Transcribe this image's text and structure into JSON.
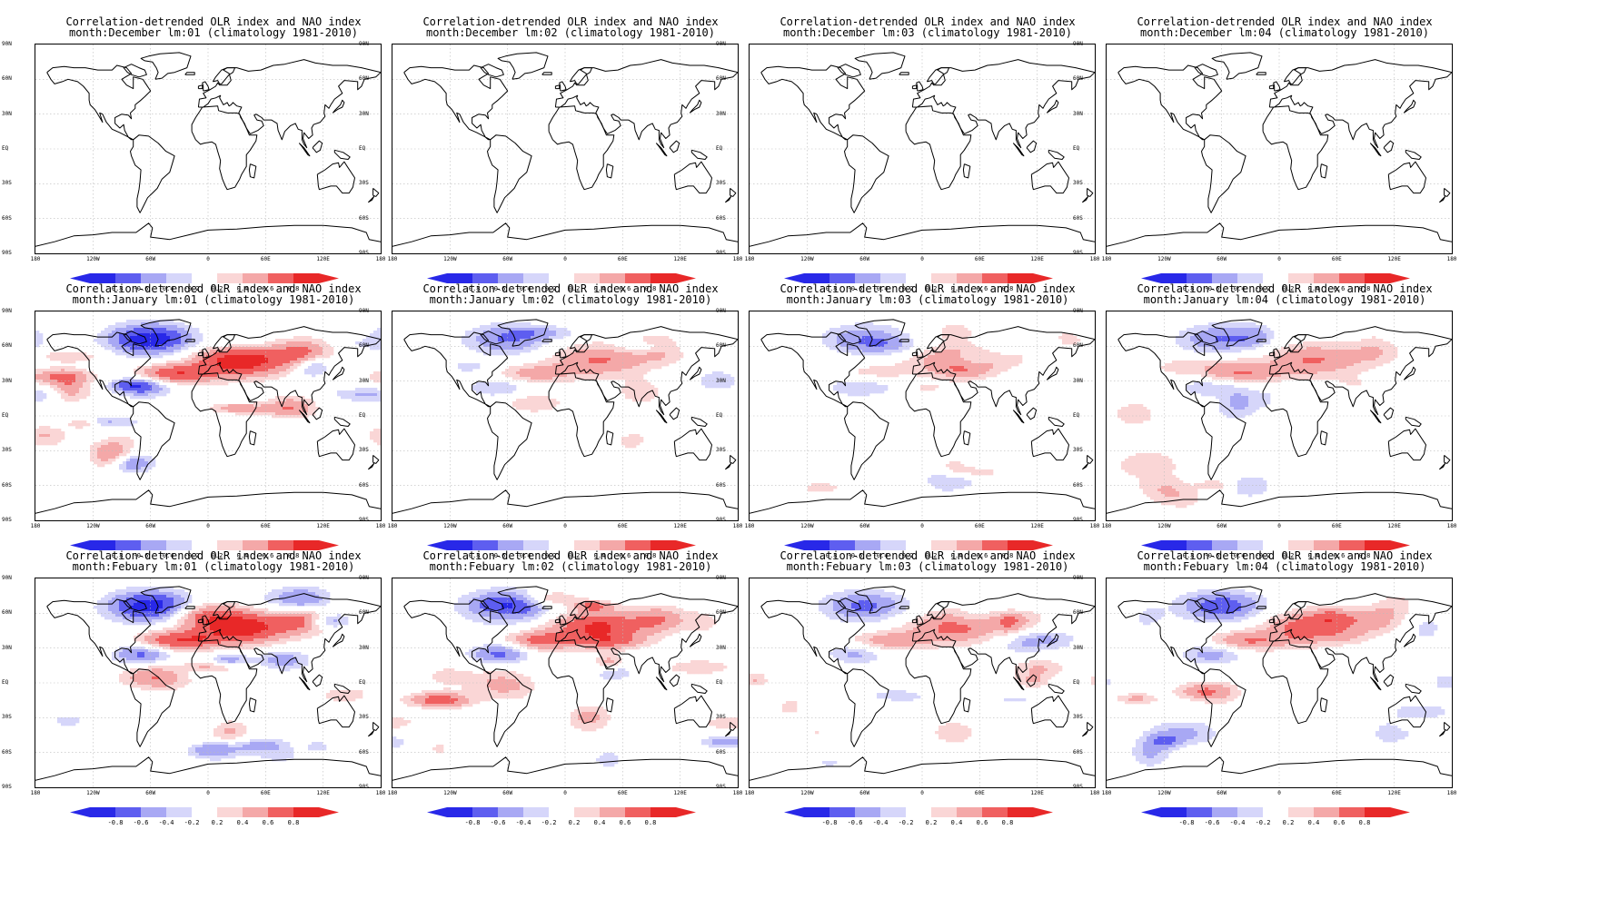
{
  "figure": {
    "title_line1": "Correlation-detrended OLR index and NAO index",
    "title_line2_template": "month:{month} lm:{lead} (climatology 1981-2010)",
    "lat_labels": [
      "90N",
      "60N",
      "30N",
      "EQ",
      "30S",
      "60S",
      "90S"
    ],
    "lon_labels": [
      "180",
      "120W",
      "60W",
      "0",
      "60E",
      "120E",
      "180"
    ],
    "colorbar_labels": [
      "-0.8",
      "-0.6",
      "-0.4",
      "-0.2",
      "0.2",
      "0.4",
      "0.6",
      "0.8"
    ],
    "colors": {
      "neg_strong": "#2828e8",
      "neg_mid": "#5e5ef0",
      "neg_weak": "#a8a8f4",
      "neg_faint": "#d6d6fa",
      "pos_faint": "#fad6d6",
      "pos_weak": "#f4a8a8",
      "pos_mid": "#f06060",
      "pos_strong": "#e82828"
    }
  },
  "panels": [
    {
      "title1": "Correlation-detrended OLR index and NAO index",
      "title2": "month:December lm:01 (climatology 1981-2010)",
      "intensity": 0
    },
    {
      "title1": "Correlation-detrended OLR index and NAO index",
      "title2": "month:December lm:02 (climatology 1981-2010)",
      "intensity": 0
    },
    {
      "title1": "Correlation-detrended OLR index and NAO index",
      "title2": "month:December lm:03 (climatology 1981-2010)",
      "intensity": 0
    },
    {
      "title1": "Correlation-detrended OLR index and NAO index",
      "title2": "month:December lm:04 (climatology 1981-2010)",
      "intensity": 0
    },
    {
      "title1": "Correlation-detrended OLR index and NAO index",
      "title2": "month:January lm:01 (climatology 1981-2010)",
      "intensity": 1.0
    },
    {
      "title1": "Correlation-detrended OLR index and NAO index",
      "title2": "month:January lm:02 (climatology 1981-2010)",
      "intensity": 0.55
    },
    {
      "title1": "Correlation-detrended OLR index and NAO index",
      "title2": "month:January lm:03 (climatology 1981-2010)",
      "intensity": 0.5
    },
    {
      "title1": "Correlation-detrended OLR index and NAO index",
      "title2": "month:January lm:04 (climatology 1981-2010)",
      "intensity": 0.55
    },
    {
      "title1": "Correlation-detrended OLR index and NAO index",
      "title2": "month:Febuary lm:01 (climatology 1981-2010)",
      "intensity": 1.0
    },
    {
      "title1": "Correlation-detrended OLR index and NAO index",
      "title2": "month:Febuary lm:02 (climatology 1981-2010)",
      "intensity": 0.85
    },
    {
      "title1": "Correlation-detrended OLR index and NAO index",
      "title2": "month:Febuary lm:03 (climatology 1981-2010)",
      "intensity": 0.6
    },
    {
      "title1": "Correlation-detrended OLR index and NAO index",
      "title2": "month:Febuary lm:04 (climatology 1981-2010)",
      "intensity": 0.7
    }
  ]
}
